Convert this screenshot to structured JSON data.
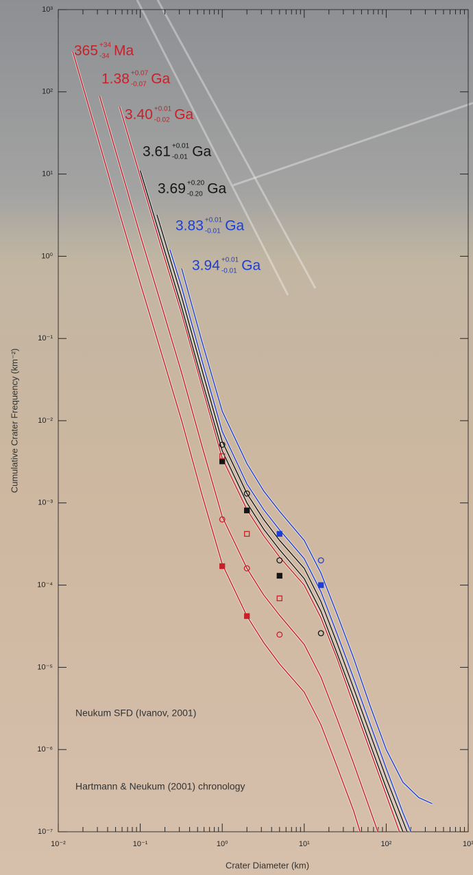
{
  "chart_data": {
    "type": "line",
    "x_label": "Crater Diameter (km)",
    "y_label": "Cumulative Crater Frequency (km⁻²)",
    "annotations": [
      "Neukum SFD (Ivanov, 2001)",
      "Hartmann & Neukum (2001) chronology"
    ],
    "xscale": "log",
    "yscale": "log",
    "xlim": [
      0.01,
      1000
    ],
    "ylim": [
      1e-07,
      1000
    ],
    "xticks": [
      {
        "value": 0.01,
        "label": "10⁻²"
      },
      {
        "value": 0.1,
        "label": "10⁻¹"
      },
      {
        "value": 1,
        "label": "10⁰"
      },
      {
        "value": 10,
        "label": "10¹"
      },
      {
        "value": 100,
        "label": "10²"
      },
      {
        "value": 1000,
        "label": "10³"
      }
    ],
    "yticks": [
      {
        "value": 1000,
        "label": "10³"
      },
      {
        "value": 100,
        "label": "10²"
      },
      {
        "value": 10,
        "label": "10¹"
      },
      {
        "value": 1,
        "label": "10⁰"
      },
      {
        "value": 0.1,
        "label": "10⁻¹"
      },
      {
        "value": 0.01,
        "label": "10⁻²"
      },
      {
        "value": 0.001,
        "label": "10⁻³"
      },
      {
        "value": 0.0001,
        "label": "10⁻⁴"
      },
      {
        "value": 1e-05,
        "label": "10⁻⁵"
      },
      {
        "value": 1e-06,
        "label": "10⁻⁶"
      },
      {
        "value": 1e-07,
        "label": "10⁻⁷"
      }
    ],
    "series": [
      {
        "name": "365",
        "sup": "+34",
        "sub": "-34",
        "unit": "Ma",
        "color": "#c8202a",
        "x": [
          0.015,
          0.032,
          0.056,
          0.1,
          0.18,
          0.32,
          0.56,
          1,
          2,
          3.2,
          5,
          10,
          16,
          25,
          40,
          48
        ],
        "values": [
          309,
          23,
          3.3,
          0.47,
          0.068,
          0.01,
          0.0013,
          0.00018,
          4.2e-05,
          2e-05,
          1.1e-05,
          5e-06,
          2e-06,
          6.3e-07,
          1.8e-07,
          1e-07
        ]
      },
      {
        "name": "1.38",
        "sup": "+0.07",
        "sub": "-0.07",
        "unit": "Ga",
        "color": "#c8202a",
        "x": [
          0.032,
          0.056,
          0.1,
          0.18,
          0.32,
          0.56,
          1,
          2,
          3.2,
          5,
          10,
          16,
          25,
          40,
          63,
          79
        ],
        "values": [
          89,
          13,
          1.8,
          0.26,
          0.038,
          0.0051,
          0.00068,
          0.00016,
          7.6e-05,
          4.3e-05,
          1.9e-05,
          7.6e-06,
          2.4e-06,
          6.8e-07,
          1.9e-07,
          1e-07
        ]
      },
      {
        "name": "3.40",
        "sup": "+0.01",
        "sub": "-0.02",
        "unit": "Ga",
        "color": "#c8202a",
        "x": [
          0.056,
          0.1,
          0.18,
          0.32,
          0.56,
          1,
          2,
          3.2,
          5,
          10,
          16,
          25,
          40,
          63,
          100,
          145
        ],
        "values": [
          66,
          9.3,
          1.3,
          0.2,
          0.027,
          0.0035,
          0.00083,
          0.0004,
          0.00022,
          0.0001,
          4e-05,
          1.3e-05,
          3.5e-06,
          1e-06,
          2.8e-07,
          1e-07
        ]
      },
      {
        "name": "3.61",
        "sup": "+0.01",
        "sub": "-0.01",
        "unit": "Ga",
        "color": "#151515",
        "x": [
          0.1,
          0.18,
          0.32,
          0.56,
          1,
          2,
          3.2,
          5,
          10,
          16,
          25,
          40,
          63,
          100,
          160
        ],
        "values": [
          11,
          1.6,
          0.24,
          0.032,
          0.0043,
          0.001,
          0.00048,
          0.00027,
          0.00012,
          4.8e-05,
          1.5e-05,
          4.3e-06,
          1.2e-06,
          3.4e-07,
          1e-07
        ]
      },
      {
        "name": "3.69",
        "sup": "+0.20",
        "sub": "-0.20",
        "unit": "Ga",
        "color": "#151515",
        "x": [
          0.16,
          0.32,
          0.56,
          1,
          2,
          3.2,
          5,
          10,
          16,
          25,
          40,
          63,
          100,
          180
        ],
        "values": [
          3.2,
          0.32,
          0.043,
          0.0056,
          0.0013,
          0.00063,
          0.00035,
          0.00016,
          6.3e-05,
          2e-05,
          5.6e-06,
          1.6e-06,
          4.5e-07,
          1e-07
        ]
      },
      {
        "name": "3.83",
        "sup": "+0.01",
        "sub": "-0.01",
        "unit": "Ga",
        "color": "#1f3fd0",
        "x": [
          0.23,
          0.32,
          0.56,
          1,
          2,
          3.2,
          5,
          10,
          16,
          25,
          40,
          63,
          100,
          160,
          200
        ],
        "values": [
          1.2,
          0.42,
          0.056,
          0.0074,
          0.0017,
          0.00083,
          0.00047,
          0.00021,
          8.3e-05,
          2.6e-05,
          7.4e-06,
          2.1e-06,
          5.9e-07,
          1.7e-07,
          1e-07
        ]
      },
      {
        "name": "3.94",
        "sup": "+0.01",
        "sub": "-0.01",
        "unit": "Ga",
        "color": "#1f3fd0",
        "x": [
          0.32,
          0.56,
          1,
          2,
          3.2,
          5,
          10,
          16,
          25,
          40,
          63,
          100,
          160,
          250,
          363
        ],
        "values": [
          0.71,
          0.095,
          0.013,
          0.003,
          0.0014,
          0.00079,
          0.00035,
          0.00014,
          4.5e-05,
          1.3e-05,
          3.5e-06,
          1e-06,
          4e-07,
          2.6e-07,
          2.2e-07
        ]
      }
    ],
    "points": [
      {
        "color": "#151515",
        "marker": "circle",
        "filled": false,
        "x": [
          1,
          2,
          5,
          16
        ],
        "values": [
          0.0051,
          0.0013,
          0.0002,
          2.6e-05
        ]
      },
      {
        "color": "#151515",
        "marker": "square",
        "filled": true,
        "x": [
          1,
          2,
          5
        ],
        "values": [
          0.0032,
          0.00081,
          0.00013
        ]
      },
      {
        "color": "#1f3fd0",
        "marker": "square",
        "filled": true,
        "x": [
          5,
          16
        ],
        "values": [
          0.00042,
          0.0001
        ]
      },
      {
        "color": "#1f3fd0",
        "marker": "circle",
        "filled": false,
        "x": [
          16
        ],
        "values": [
          0.0002
        ]
      },
      {
        "color": "#c8202a",
        "marker": "square",
        "filled": false,
        "x": [
          1,
          2,
          5
        ],
        "values": [
          0.0037,
          0.00042,
          6.9e-05
        ]
      },
      {
        "color": "#c8202a",
        "marker": "circle",
        "filled": false,
        "x": [
          1,
          2,
          5
        ],
        "values": [
          0.00063,
          0.00016,
          2.5e-05
        ]
      },
      {
        "color": "#c8202a",
        "marker": "square",
        "filled": true,
        "x": [
          1,
          2
        ],
        "values": [
          0.00017,
          4.2e-05
        ]
      }
    ]
  }
}
